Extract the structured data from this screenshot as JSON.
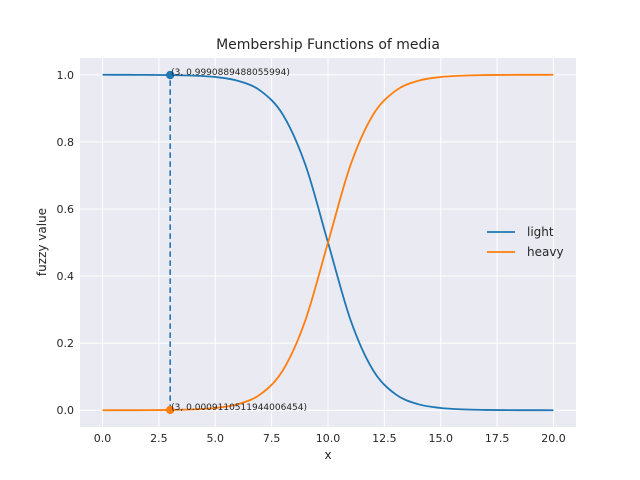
{
  "chart_data": {
    "type": "line",
    "title": "Membership Functions of media",
    "xlabel": "x",
    "ylabel": "fuzzy value",
    "xlim": [
      -1.0,
      21.0
    ],
    "ylim": [
      -0.05,
      1.05
    ],
    "xticks": [
      0.0,
      2.5,
      5.0,
      7.5,
      10.0,
      12.5,
      15.0,
      17.5,
      20.0
    ],
    "xtick_labels": [
      "0.0",
      "2.5",
      "5.0",
      "7.5",
      "10.0",
      "12.5",
      "15.0",
      "17.5",
      "20.0"
    ],
    "yticks": [
      0.0,
      0.2,
      0.4,
      0.6,
      0.8,
      1.0
    ],
    "ytick_labels": [
      "0.0",
      "0.2",
      "0.4",
      "0.6",
      "0.8",
      "1.0"
    ],
    "grid": true,
    "legend_position": "center-right",
    "background_color": "#eaeaf2",
    "series": [
      {
        "name": "light",
        "color": "#1f77b4",
        "x": [
          0,
          1,
          2,
          3,
          4,
          5,
          6,
          7,
          8,
          9,
          10,
          11,
          12,
          13,
          14,
          15,
          16,
          17,
          18,
          19,
          20
        ],
        "y": [
          1.0,
          0.9999,
          0.9996,
          0.9991,
          0.9975,
          0.9933,
          0.982,
          0.9526,
          0.8808,
          0.7311,
          0.5,
          0.2689,
          0.1192,
          0.0474,
          0.018,
          0.0067,
          0.0025,
          0.0009,
          0.0003,
          0.0001,
          0.0
        ]
      },
      {
        "name": "heavy",
        "color": "#ff7f0e",
        "x": [
          0,
          1,
          2,
          3,
          4,
          5,
          6,
          7,
          8,
          9,
          10,
          11,
          12,
          13,
          14,
          15,
          16,
          17,
          18,
          19,
          20
        ],
        "y": [
          0.0,
          0.0001,
          0.0003,
          0.0009,
          0.0025,
          0.0067,
          0.018,
          0.0474,
          0.1192,
          0.2689,
          0.5,
          0.7311,
          0.8808,
          0.9526,
          0.982,
          0.9933,
          0.9975,
          0.9991,
          0.9997,
          0.9999,
          1.0
        ]
      }
    ],
    "vline": {
      "x": 3,
      "y_from": 0.0009110511944006454,
      "y_to": 0.9990889488055994,
      "style": "dashed",
      "color": "#1f77b4"
    },
    "points": [
      {
        "x": 3,
        "y": 0.9990889488055994,
        "color": "#1f77b4",
        "label": "(3, 0.9990889488055994)"
      },
      {
        "x": 3,
        "y": 0.0009110511944006454,
        "color": "#ff7f0e",
        "label": "(3, 0.0009110511944006454)"
      }
    ]
  }
}
